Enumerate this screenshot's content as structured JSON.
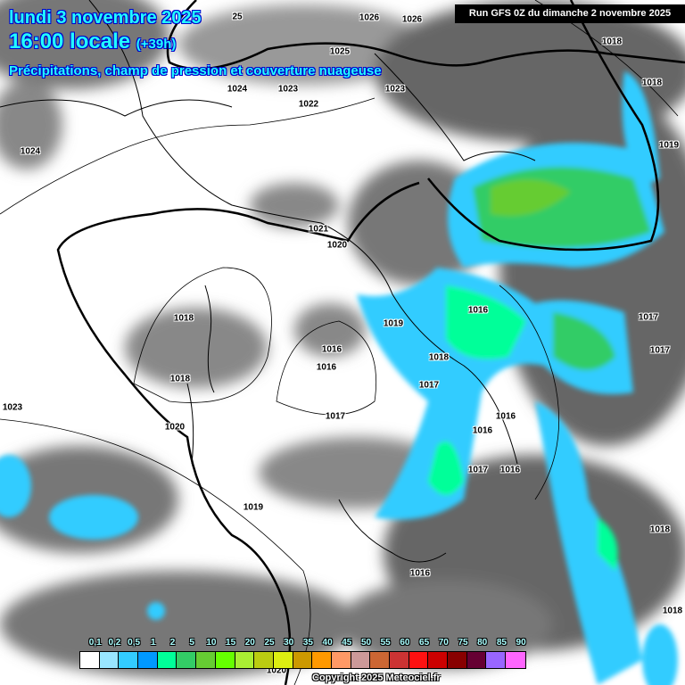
{
  "header": {
    "date": "lundi 3 novembre 2025",
    "time": "16:00 locale",
    "lead": "(+39h)",
    "subtitle": "Précipitations, champ de pression et couverture nuageuse",
    "run": "Run GFS 0Z du dimanche 2 novembre 2025"
  },
  "pressure_labels": [
    "1026",
    "1026",
    "1025",
    "25",
    "1018",
    "1018",
    "1024",
    "1023",
    "1023",
    "1022",
    "1024",
    "1019",
    "1021",
    "1020",
    "1018",
    "1019",
    "1016",
    "1017",
    "1016",
    "1018",
    "1016",
    "1017",
    "1018",
    "1017",
    "1017",
    "1023",
    "1020",
    "1016",
    "1016",
    "1017",
    "1016",
    "1019",
    "1018",
    "1016",
    "1018",
    "1020"
  ],
  "legend": {
    "labels": [
      "0,1",
      "0,2",
      "0,5",
      "1",
      "2",
      "5",
      "10",
      "15",
      "20",
      "25",
      "30",
      "35",
      "40",
      "45",
      "50",
      "55",
      "60",
      "65",
      "70",
      "75",
      "80",
      "85",
      "90"
    ],
    "colors": [
      "#ffffff",
      "#99e6ff",
      "#33ccff",
      "#0099ff",
      "#00ff99",
      "#33cc66",
      "#66cc33",
      "#66ff00",
      "#aaee33",
      "#bbcc11",
      "#ddee11",
      "#cc9900",
      "#ff9900",
      "#ff9966",
      "#cc9999",
      "#cc6633",
      "#cc3333",
      "#ff1111",
      "#cc0000",
      "#880000",
      "#660033",
      "#9966ff",
      "#ff66ff"
    ]
  },
  "copyright": "Copyright 2025 Meteociel.fr"
}
